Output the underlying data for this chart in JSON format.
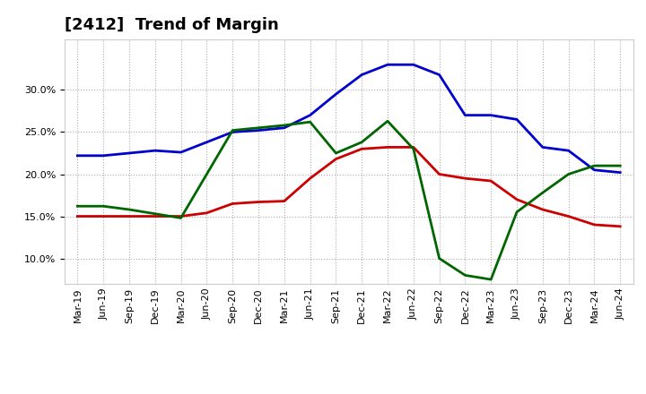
{
  "title": "[2412]  Trend of Margin",
  "x_labels": [
    "Mar-19",
    "Jun-19",
    "Sep-19",
    "Dec-19",
    "Mar-20",
    "Jun-20",
    "Sep-20",
    "Dec-20",
    "Mar-21",
    "Jun-21",
    "Sep-21",
    "Dec-21",
    "Mar-22",
    "Jun-22",
    "Sep-22",
    "Dec-22",
    "Mar-23",
    "Jun-23",
    "Sep-23",
    "Dec-23",
    "Mar-24",
    "Jun-24"
  ],
  "ordinary_income": [
    0.222,
    0.222,
    0.225,
    0.228,
    0.226,
    0.238,
    0.25,
    0.252,
    0.255,
    0.27,
    0.295,
    0.318,
    0.33,
    0.33,
    0.318,
    0.27,
    0.27,
    0.265,
    0.232,
    0.228,
    0.205,
    0.202
  ],
  "net_income": [
    0.15,
    0.15,
    0.15,
    0.15,
    0.15,
    0.154,
    0.165,
    0.167,
    0.168,
    0.195,
    0.218,
    0.23,
    0.232,
    0.232,
    0.2,
    0.195,
    0.192,
    0.17,
    0.158,
    0.15,
    0.14,
    0.138
  ],
  "operating_cashflow": [
    0.162,
    0.162,
    0.158,
    0.153,
    0.148,
    0.2,
    0.252,
    0.255,
    0.258,
    0.262,
    0.225,
    0.238,
    0.263,
    0.23,
    0.1,
    0.08,
    0.075,
    0.155,
    0.178,
    0.2,
    0.21,
    0.21
  ],
  "ylim": [
    0.07,
    0.36
  ],
  "yticks": [
    0.1,
    0.15,
    0.2,
    0.25,
    0.3
  ],
  "line_colors": {
    "ordinary_income": "#0000cc",
    "net_income": "#cc0000",
    "operating_cashflow": "#006600"
  },
  "line_width": 2.0,
  "background_color": "#ffffff",
  "plot_bg_color": "#ffffff",
  "grid_color": "#aaaaaa",
  "title_fontsize": 13,
  "tick_fontsize": 8,
  "legend_fontsize": 9
}
